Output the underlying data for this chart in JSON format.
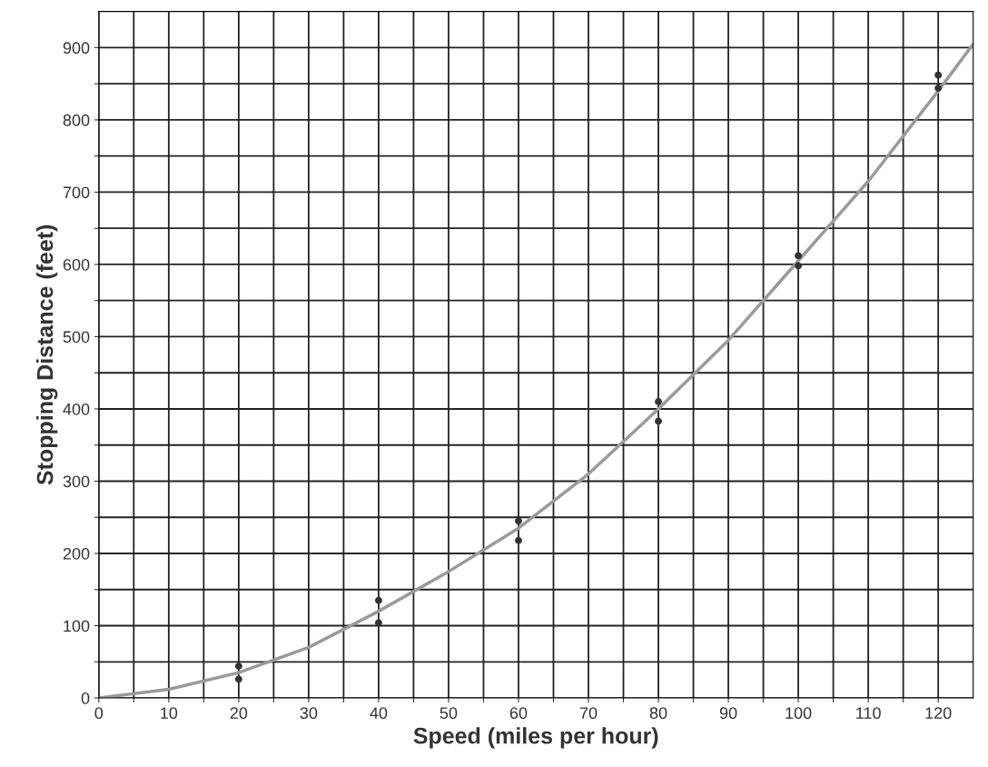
{
  "chart_data": {
    "type": "scatter",
    "xlabel": "Speed (miles per hour)",
    "ylabel": "Stopping Distance (feet)",
    "xlim": [
      0,
      125
    ],
    "ylim": [
      0,
      950
    ],
    "xticks": [
      0,
      {
        "value": 5,
        "label": null
      },
      10,
      {
        "value": 15,
        "label": null
      },
      20,
      {
        "value": 25,
        "label": null
      },
      30,
      {
        "value": 35,
        "label": null
      },
      40,
      {
        "value": 45,
        "label": null
      },
      50,
      {
        "value": 55,
        "label": null
      },
      60,
      {
        "value": 65,
        "label": null
      },
      70,
      {
        "value": 75,
        "label": null
      },
      80,
      {
        "value": 85,
        "label": null
      },
      90,
      {
        "value": 95,
        "label": null
      },
      100,
      {
        "value": 105,
        "label": null
      },
      110,
      {
        "value": 115,
        "label": null
      },
      120
    ],
    "yticks": [
      0,
      {
        "value": 50,
        "label": null
      },
      100,
      {
        "value": 150,
        "label": null
      },
      200,
      {
        "value": 250,
        "label": null
      },
      300,
      {
        "value": 350,
        "label": null
      },
      400,
      {
        "value": 450,
        "label": null
      },
      500,
      {
        "value": 550,
        "label": null
      },
      600,
      {
        "value": 650,
        "label": null
      },
      700,
      {
        "value": 750,
        "label": null
      },
      800,
      {
        "value": 850,
        "label": null
      },
      900
    ],
    "grid": true,
    "series": [
      {
        "type": "line",
        "marker": "none",
        "color": "#9a9a9a",
        "x": [
          0,
          10,
          20,
          30,
          40,
          50,
          60,
          70,
          80,
          90,
          100,
          110,
          120,
          125
        ],
        "values": [
          0,
          12,
          35,
          70,
          120,
          175,
          235,
          310,
          400,
          495,
          605,
          715,
          840,
          905
        ]
      },
      {
        "marker": "circle",
        "color": "#333333",
        "x": [
          20,
          40,
          60,
          80,
          100,
          120
        ],
        "values": [
          44,
          135,
          245,
          410,
          612,
          862
        ]
      },
      {
        "marker": "circle",
        "color": "#333333",
        "x": [
          20,
          40,
          60,
          80,
          100,
          120
        ],
        "values": [
          26,
          104,
          218,
          383,
          598,
          844
        ]
      }
    ]
  }
}
